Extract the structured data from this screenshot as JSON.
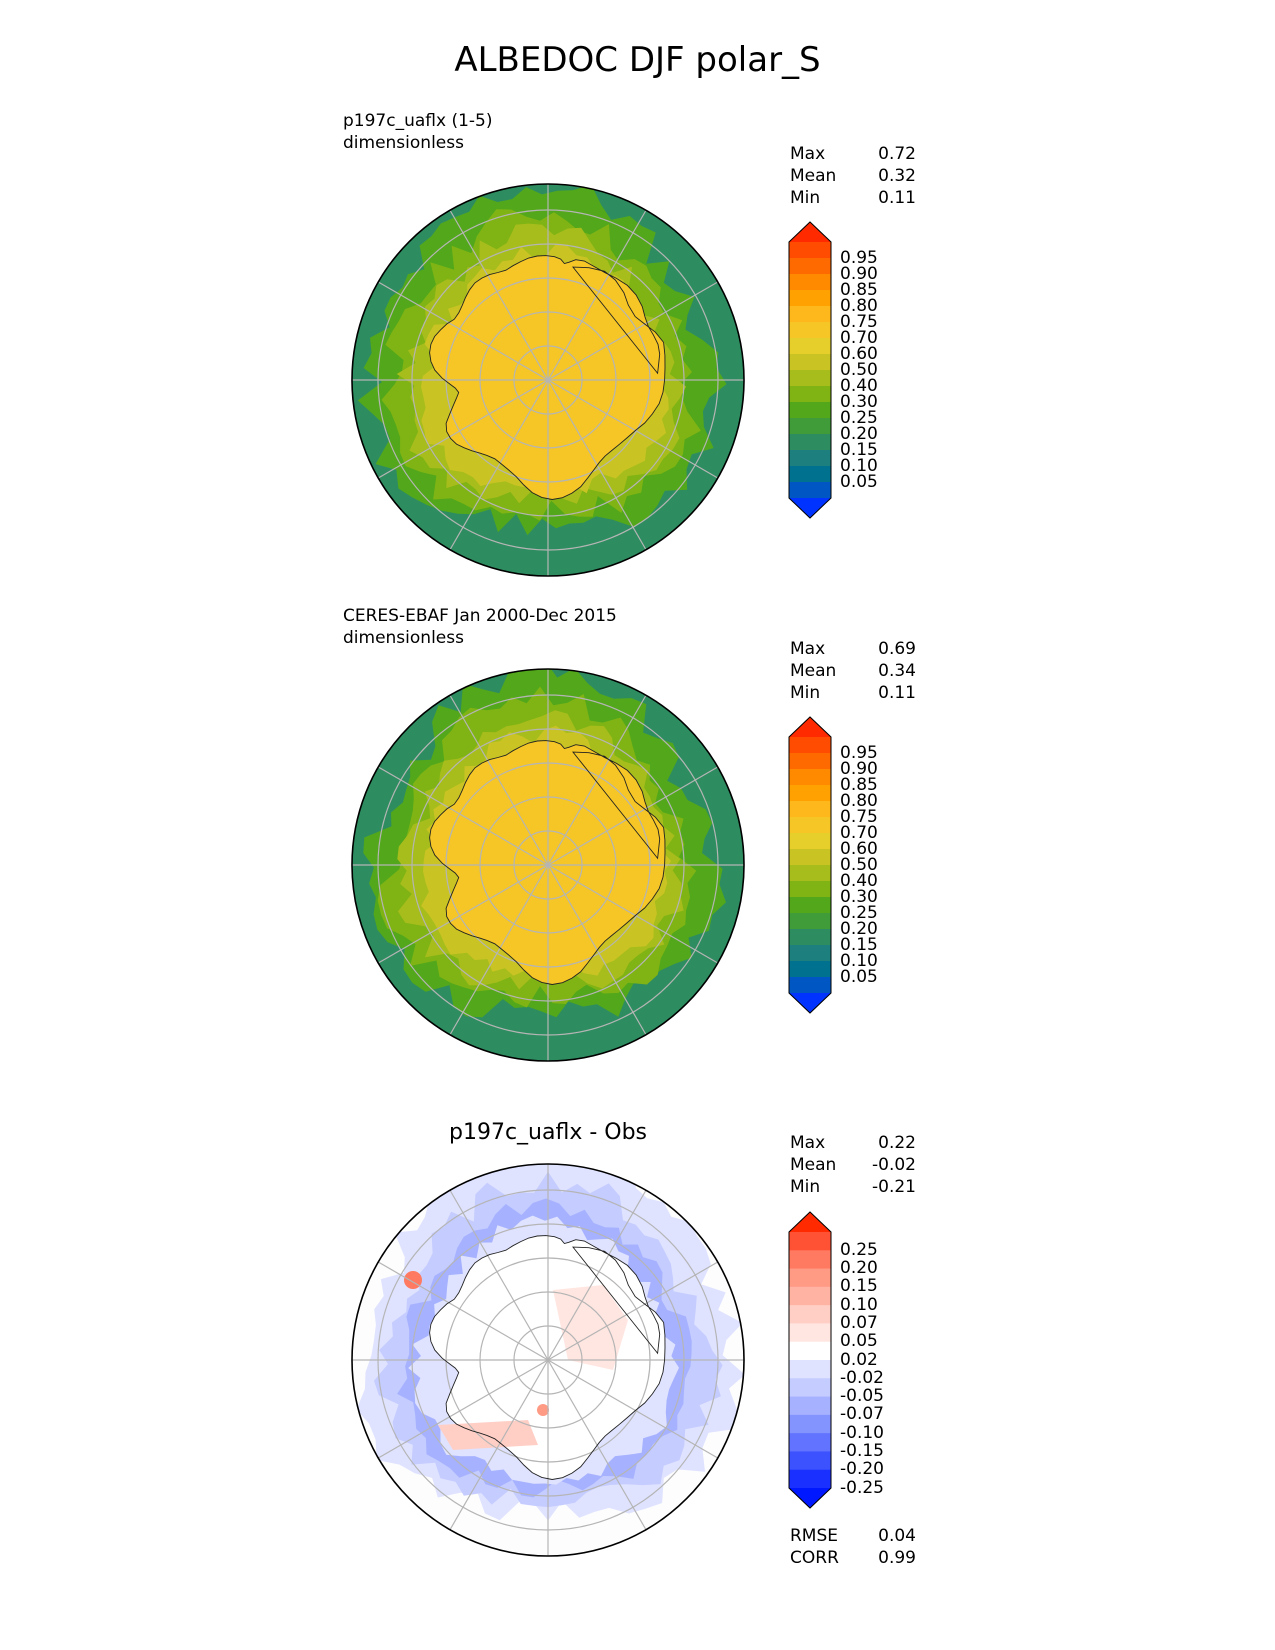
{
  "figure": {
    "title": "ALBEDOC DJF polar_S"
  },
  "colors": {
    "ocean": "#00728f",
    "frame": "#000000",
    "grid": "#b5b5b5",
    "coast": "#222222",
    "zero_band": "#ffffff"
  },
  "icons": [
    "polar-map-icon",
    "colorbar-icon"
  ],
  "chart_data": [
    {
      "type": "heatmap",
      "projection": "polar stereographic (south)",
      "title": "p197c_uaflx (1-5)",
      "units": "dimensionless",
      "grid": true,
      "stats": [
        {
          "label": "Max",
          "value": "0.72"
        },
        {
          "label": "Mean",
          "value": "0.32"
        },
        {
          "label": "Min",
          "value": "0.11"
        }
      ],
      "field": {
        "continent_value": 0.68,
        "inner_ring": 0.45,
        "mid_ring": 0.32,
        "outer_ring": 0.22,
        "ocean_value": 0.12
      },
      "colorbar": {
        "ticks": [
          "0.95",
          "0.90",
          "0.85",
          "0.80",
          "0.75",
          "0.70",
          "0.60",
          "0.50",
          "0.40",
          "0.30",
          "0.25",
          "0.20",
          "0.15",
          "0.10",
          "0.05"
        ],
        "colors": [
          "#ff2a00",
          "#ff4c00",
          "#ff6a00",
          "#ff8a00",
          "#ffa100",
          "#ffb81c",
          "#f5c625",
          "#e6cf2b",
          "#c9c423",
          "#a7bd1c",
          "#80b414",
          "#52a81a",
          "#3f9c38",
          "#2e8d60",
          "#1d7f7e",
          "#00728f",
          "#0057c4",
          "#0033ff"
        ],
        "extend": "both"
      }
    },
    {
      "type": "heatmap",
      "projection": "polar stereographic (south)",
      "title": "CERES-EBAF Jan 2000-Dec 2015",
      "units": "dimensionless",
      "grid": true,
      "stats": [
        {
          "label": "Max",
          "value": "0.69"
        },
        {
          "label": "Mean",
          "value": "0.34"
        },
        {
          "label": "Min",
          "value": "0.11"
        }
      ],
      "field": {
        "continent_value": 0.66,
        "inner_ring": 0.48,
        "mid_ring": 0.33,
        "outer_ring": 0.22,
        "ocean_value": 0.12
      },
      "colorbar": {
        "ticks": [
          "0.95",
          "0.90",
          "0.85",
          "0.80",
          "0.75",
          "0.70",
          "0.60",
          "0.50",
          "0.40",
          "0.30",
          "0.25",
          "0.20",
          "0.15",
          "0.10",
          "0.05"
        ],
        "colors": [
          "#ff2a00",
          "#ff4c00",
          "#ff6a00",
          "#ff8a00",
          "#ffa100",
          "#ffb81c",
          "#f5c625",
          "#e6cf2b",
          "#c9c423",
          "#a7bd1c",
          "#80b414",
          "#52a81a",
          "#3f9c38",
          "#2e8d60",
          "#1d7f7e",
          "#00728f",
          "#0057c4",
          "#0033ff"
        ],
        "extend": "both"
      }
    },
    {
      "type": "heatmap",
      "projection": "polar stereographic (south)",
      "title": "p197c_uaflx - Obs",
      "units": "",
      "grid": true,
      "stats": [
        {
          "label": "Max",
          "value": "0.22"
        },
        {
          "label": "Mean",
          "value": "-0.02"
        },
        {
          "label": "Min",
          "value": "-0.21"
        }
      ],
      "metrics": [
        {
          "label": "RMSE",
          "value": "0.04"
        },
        {
          "label": "CORR",
          "value": "0.99"
        }
      ],
      "colorbar": {
        "ticks": [
          "0.25",
          "0.20",
          "0.15",
          "0.10",
          "0.07",
          "0.05",
          "0.02",
          "-0.02",
          "-0.05",
          "-0.07",
          "-0.10",
          "-0.15",
          "-0.20",
          "-0.25"
        ],
        "colors": [
          "#ff2a00",
          "#ff5235",
          "#ff7a60",
          "#ff9a85",
          "#ffb3a3",
          "#ffcfc6",
          "#ffe6e1",
          "#ffffff",
          "#dfe3ff",
          "#c5ccff",
          "#a6b2ff",
          "#8494ff",
          "#6274ff",
          "#3d52ff",
          "#1a30ff",
          "#0018ff"
        ],
        "extend": "both"
      }
    }
  ]
}
